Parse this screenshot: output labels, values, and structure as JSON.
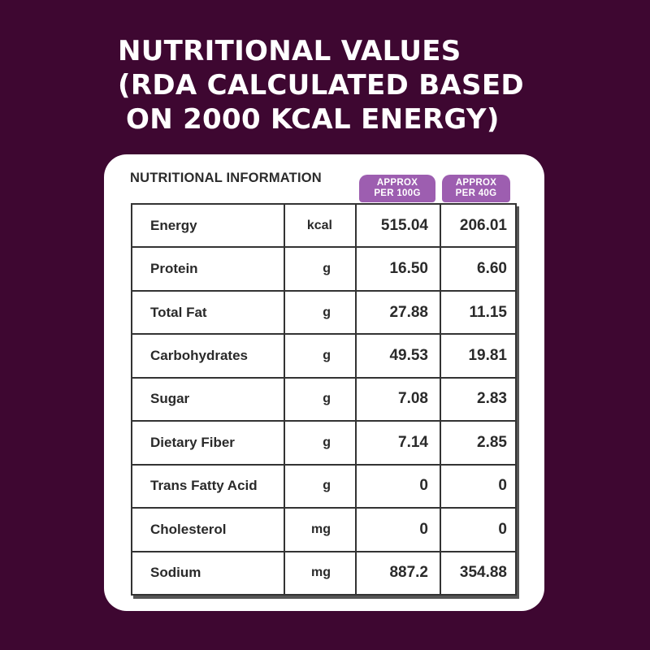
{
  "colors": {
    "background": "#3e0731",
    "badge": "#9d5eb0",
    "card": "#ffffff"
  },
  "title": {
    "lines": [
      "NUTRITIONAL VALUES",
      "(RDA CALCULATED BASED",
      "ON 2000 KCAL ENERGY)"
    ]
  },
  "panel": {
    "label": "NUTRITIONAL INFORMATION",
    "columns": [
      {
        "line1": "APPROX",
        "line2": "PER 100G"
      },
      {
        "line1": "APPROX",
        "line2": "PER 40G"
      }
    ]
  },
  "rows": [
    {
      "nutrient": "Energy",
      "unit": "kcal",
      "per100g": "515.04",
      "per40g": "206.01"
    },
    {
      "nutrient": "Protein",
      "unit": "g",
      "per100g": "16.50",
      "per40g": "6.60"
    },
    {
      "nutrient": "Total Fat",
      "unit": "g",
      "per100g": "27.88",
      "per40g": "11.15"
    },
    {
      "nutrient": "Carbohydrates",
      "unit": "g",
      "per100g": "49.53",
      "per40g": "19.81"
    },
    {
      "nutrient": "Sugar",
      "unit": "g",
      "per100g": "7.08",
      "per40g": "2.83"
    },
    {
      "nutrient": "Dietary Fiber",
      "unit": "g",
      "per100g": "7.14",
      "per40g": "2.85"
    },
    {
      "nutrient": "Trans Fatty Acid",
      "unit": "g",
      "per100g": "0",
      "per40g": "0"
    },
    {
      "nutrient": "Cholesterol",
      "unit": "mg",
      "per100g": "0",
      "per40g": "0"
    },
    {
      "nutrient": "Sodium",
      "unit": "mg",
      "per100g": "887.2",
      "per40g": "354.88"
    }
  ]
}
